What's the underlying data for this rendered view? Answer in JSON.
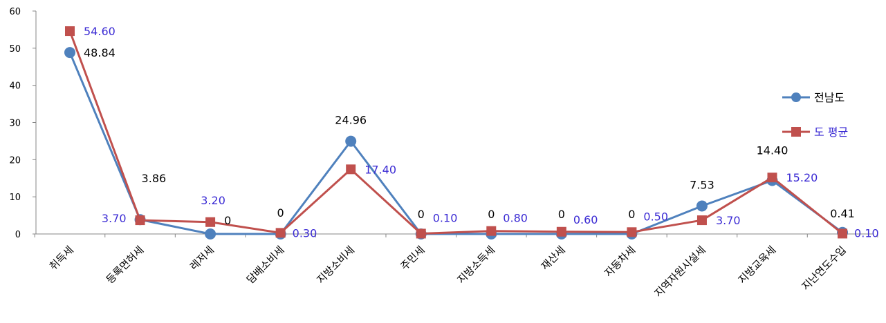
{
  "chart_data": {
    "type": "line",
    "categories": [
      "취득세",
      "등록면허세",
      "레저세",
      "담배소비세",
      "지방소비세",
      "주민세",
      "지방소득세",
      "재산세",
      "자동차세",
      "지역자원시설세",
      "지방교육세",
      "지난연도수입"
    ],
    "series": [
      {
        "name": "전남도",
        "color": "#4f81bd",
        "marker": "circle",
        "label_color": "#000000",
        "values": [
          48.84,
          3.86,
          0,
          0,
          24.96,
          0,
          0,
          0,
          0,
          7.53,
          14.4,
          0.41
        ],
        "labels": [
          "48.84",
          "3.86",
          "0",
          "0",
          "24.96",
          "0",
          "0",
          "0",
          "0",
          "7.53",
          "14.40",
          "0.41"
        ]
      },
      {
        "name": "도 평균",
        "color": "#c0504d",
        "marker": "square",
        "label_color": "#3b2bd4",
        "values": [
          54.6,
          3.7,
          3.2,
          0.3,
          17.4,
          0.1,
          0.8,
          0.6,
          0.5,
          3.7,
          15.2,
          0.1
        ],
        "labels": [
          "54.60",
          "3.70",
          "3.20",
          "0.30",
          "17.40",
          "0.10",
          "0.80",
          "0.60",
          "0.50",
          "3.70",
          "15.20",
          "0.10"
        ]
      }
    ],
    "y_ticks": [
      "0",
      "10",
      "20",
      "30",
      "40",
      "50",
      "60"
    ],
    "ylim": [
      0,
      60
    ],
    "xlabel": "",
    "ylabel": "",
    "title": "",
    "grid": false,
    "legend": "right"
  }
}
